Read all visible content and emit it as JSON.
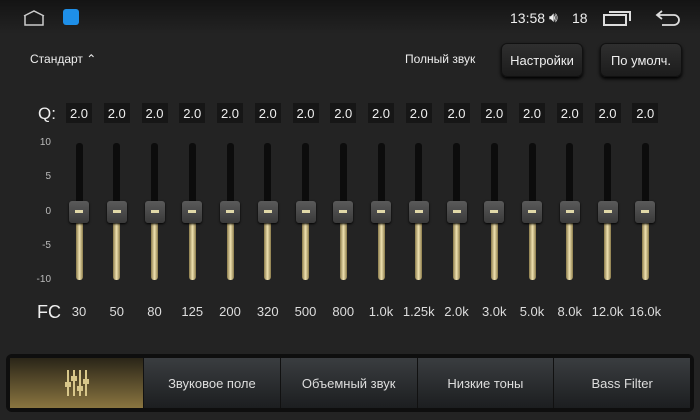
{
  "status": {
    "time": "13:58",
    "volume": "18",
    "icons": [
      "home-icon",
      "app-icon",
      "volume-icon",
      "recent-apps-icon",
      "back-icon"
    ]
  },
  "header": {
    "preset": "Стандарт",
    "full_sound": "Полный звук",
    "settings": "Настройки",
    "default": "По умолч."
  },
  "eq": {
    "q_label": "Q:",
    "fc_label": "FC",
    "scale": [
      "10",
      "5",
      "0",
      "-5",
      "-10"
    ],
    "range": [
      -10,
      10
    ],
    "bands": [
      {
        "fc": "30",
        "q": "2.0",
        "gain": 0
      },
      {
        "fc": "50",
        "q": "2.0",
        "gain": 0
      },
      {
        "fc": "80",
        "q": "2.0",
        "gain": 0
      },
      {
        "fc": "125",
        "q": "2.0",
        "gain": 0
      },
      {
        "fc": "200",
        "q": "2.0",
        "gain": 0
      },
      {
        "fc": "320",
        "q": "2.0",
        "gain": 0
      },
      {
        "fc": "500",
        "q": "2.0",
        "gain": 0
      },
      {
        "fc": "800",
        "q": "2.0",
        "gain": 0
      },
      {
        "fc": "1.0k",
        "q": "2.0",
        "gain": 0
      },
      {
        "fc": "1.25k",
        "q": "2.0",
        "gain": 0
      },
      {
        "fc": "2.0k",
        "q": "2.0",
        "gain": 0
      },
      {
        "fc": "3.0k",
        "q": "2.0",
        "gain": 0
      },
      {
        "fc": "5.0k",
        "q": "2.0",
        "gain": 0
      },
      {
        "fc": "8.0k",
        "q": "2.0",
        "gain": 0
      },
      {
        "fc": "12.0k",
        "q": "2.0",
        "gain": 0
      },
      {
        "fc": "16.0k",
        "q": "2.0",
        "gain": 0
      }
    ]
  },
  "tabs": [
    "Звуковое поле",
    "Объемный звук",
    "Низкие тоны",
    "Bass Filter"
  ],
  "colors": {
    "accent": "#d8c78a",
    "active_tab": "#8a7540"
  }
}
